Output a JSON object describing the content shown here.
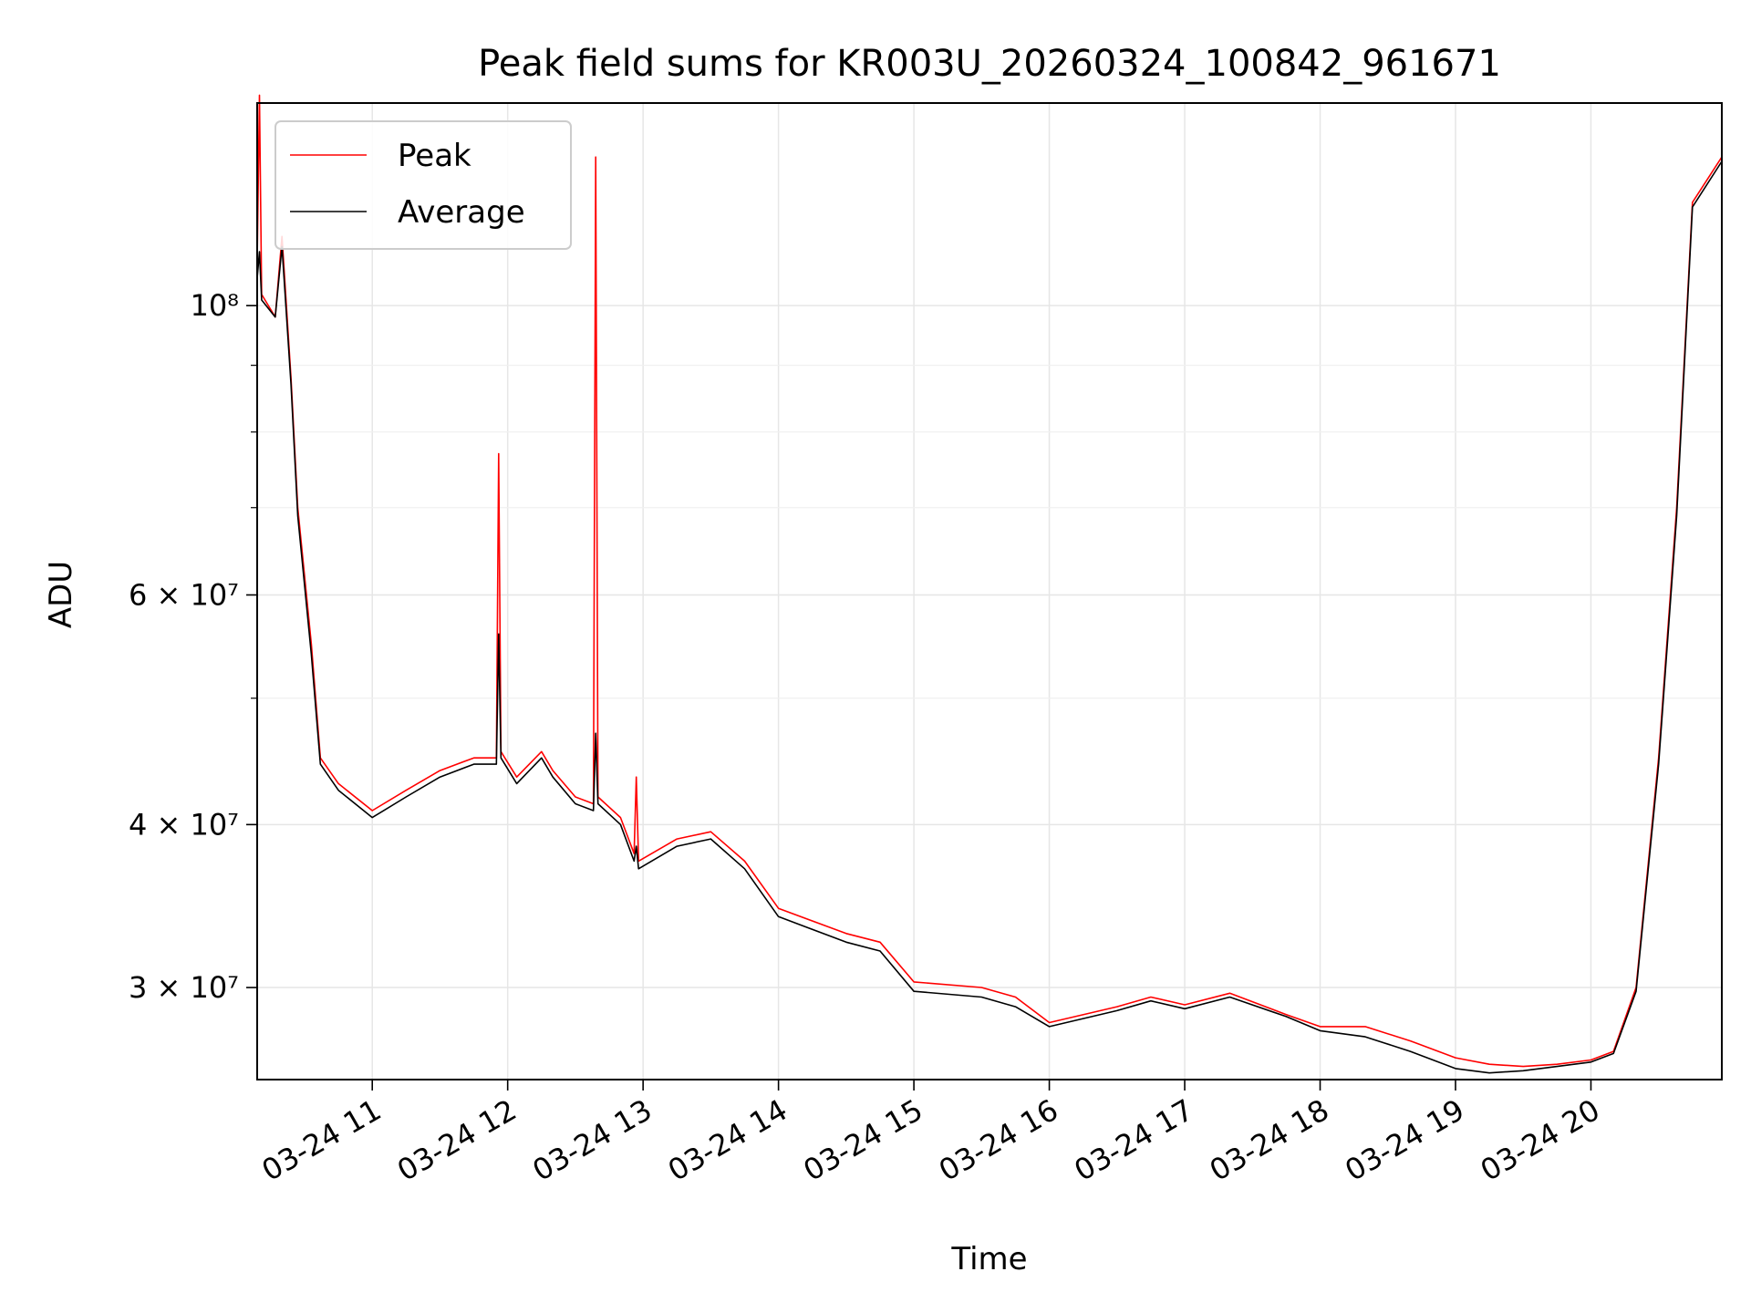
{
  "chart_data": {
    "type": "line",
    "title": "Peak field sums for KR003U_20260324_100842_961671",
    "xlabel": "Time",
    "ylabel": "ADU",
    "yscale": "log",
    "ylim": [
      25500000,
      143000000
    ],
    "xlim": [
      "2026-03-24 10:09",
      "2026-03-24 20:58"
    ],
    "grid": true,
    "legend_position": "top-left",
    "x_ticks": [
      {
        "value": "2026-03-24 11:00",
        "label": "03-24 11"
      },
      {
        "value": "2026-03-24 12:00",
        "label": "03-24 12"
      },
      {
        "value": "2026-03-24 13:00",
        "label": "03-24 13"
      },
      {
        "value": "2026-03-24 14:00",
        "label": "03-24 14"
      },
      {
        "value": "2026-03-24 15:00",
        "label": "03-24 15"
      },
      {
        "value": "2026-03-24 16:00",
        "label": "03-24 16"
      },
      {
        "value": "2026-03-24 17:00",
        "label": "03-24 17"
      },
      {
        "value": "2026-03-24 18:00",
        "label": "03-24 18"
      },
      {
        "value": "2026-03-24 19:00",
        "label": "03-24 19"
      },
      {
        "value": "2026-03-24 20:00",
        "label": "03-24 20"
      }
    ],
    "y_ticks": [
      {
        "value": 30000000,
        "label": "3 × 10⁷"
      },
      {
        "value": 40000000,
        "label": "4 × 10⁷"
      },
      {
        "value": 60000000,
        "label": "6 × 10⁷"
      },
      {
        "value": 100000000,
        "label": "10⁸"
      }
    ],
    "y_minor_ticks": [
      50000000,
      70000000,
      80000000,
      90000000
    ],
    "series": [
      {
        "name": "Peak",
        "color": "#ff0000",
        "points": [
          [
            "2026-03-24 10:09",
            108000000
          ],
          [
            "2026-03-24 10:10",
            145000000
          ],
          [
            "2026-03-24 10:11",
            102000000
          ],
          [
            "2026-03-24 10:17",
            98000000
          ],
          [
            "2026-03-24 10:20",
            113000000
          ],
          [
            "2026-03-24 10:24",
            88000000
          ],
          [
            "2026-03-24 10:27",
            70000000
          ],
          [
            "2026-03-24 10:33",
            55000000
          ],
          [
            "2026-03-24 10:37",
            45000000
          ],
          [
            "2026-03-24 10:45",
            43000000
          ],
          [
            "2026-03-24 11:00",
            41000000
          ],
          [
            "2026-03-24 11:15",
            42500000
          ],
          [
            "2026-03-24 11:30",
            44000000
          ],
          [
            "2026-03-24 11:45",
            45000000
          ],
          [
            "2026-03-24 11:55",
            45000000
          ],
          [
            "2026-03-24 11:56",
            77000000
          ],
          [
            "2026-03-24 11:57",
            45500000
          ],
          [
            "2026-03-24 12:04",
            43500000
          ],
          [
            "2026-03-24 12:15",
            45500000
          ],
          [
            "2026-03-24 12:20",
            44000000
          ],
          [
            "2026-03-24 12:30",
            42000000
          ],
          [
            "2026-03-24 12:38",
            41500000
          ],
          [
            "2026-03-24 12:39",
            130000000
          ],
          [
            "2026-03-24 12:40",
            42000000
          ],
          [
            "2026-03-24 12:50",
            40500000
          ],
          [
            "2026-03-24 12:56",
            38000000
          ],
          [
            "2026-03-24 12:57",
            43500000
          ],
          [
            "2026-03-24 12:58",
            37500000
          ],
          [
            "2026-03-24 13:15",
            39000000
          ],
          [
            "2026-03-24 13:30",
            39500000
          ],
          [
            "2026-03-24 13:45",
            37500000
          ],
          [
            "2026-03-24 14:00",
            34500000
          ],
          [
            "2026-03-24 14:30",
            33000000
          ],
          [
            "2026-03-24 14:45",
            32500000
          ],
          [
            "2026-03-24 15:00",
            30300000
          ],
          [
            "2026-03-24 15:30",
            30000000
          ],
          [
            "2026-03-24 15:45",
            29500000
          ],
          [
            "2026-03-24 16:00",
            28200000
          ],
          [
            "2026-03-24 16:30",
            29000000
          ],
          [
            "2026-03-24 16:45",
            29500000
          ],
          [
            "2026-03-24 17:00",
            29100000
          ],
          [
            "2026-03-24 17:20",
            29700000
          ],
          [
            "2026-03-24 17:45",
            28600000
          ],
          [
            "2026-03-24 18:00",
            28000000
          ],
          [
            "2026-03-24 18:20",
            28000000
          ],
          [
            "2026-03-24 18:40",
            27300000
          ],
          [
            "2026-03-24 19:00",
            26500000
          ],
          [
            "2026-03-24 19:15",
            26200000
          ],
          [
            "2026-03-24 19:30",
            26100000
          ],
          [
            "2026-03-24 19:45",
            26200000
          ],
          [
            "2026-03-24 20:00",
            26400000
          ],
          [
            "2026-03-24 20:10",
            26800000
          ],
          [
            "2026-03-24 20:20",
            30000000
          ],
          [
            "2026-03-24 20:30",
            45000000
          ],
          [
            "2026-03-24 20:38",
            70000000
          ],
          [
            "2026-03-24 20:45",
            120000000
          ],
          [
            "2026-03-24 20:58",
            130000000
          ]
        ]
      },
      {
        "name": "Average",
        "color": "#000000",
        "points": [
          [
            "2026-03-24 10:09",
            105000000
          ],
          [
            "2026-03-24 10:10",
            110000000
          ],
          [
            "2026-03-24 10:11",
            101000000
          ],
          [
            "2026-03-24 10:17",
            98000000
          ],
          [
            "2026-03-24 10:20",
            111000000
          ],
          [
            "2026-03-24 10:24",
            87000000
          ],
          [
            "2026-03-24 10:27",
            69000000
          ],
          [
            "2026-03-24 10:33",
            54000000
          ],
          [
            "2026-03-24 10:37",
            44500000
          ],
          [
            "2026-03-24 10:45",
            42500000
          ],
          [
            "2026-03-24 11:00",
            40500000
          ],
          [
            "2026-03-24 11:15",
            42000000
          ],
          [
            "2026-03-24 11:30",
            43500000
          ],
          [
            "2026-03-24 11:45",
            44500000
          ],
          [
            "2026-03-24 11:55",
            44500000
          ],
          [
            "2026-03-24 11:56",
            56000000
          ],
          [
            "2026-03-24 11:57",
            45000000
          ],
          [
            "2026-03-24 12:04",
            43000000
          ],
          [
            "2026-03-24 12:15",
            45000000
          ],
          [
            "2026-03-24 12:20",
            43500000
          ],
          [
            "2026-03-24 12:30",
            41500000
          ],
          [
            "2026-03-24 12:38",
            41000000
          ],
          [
            "2026-03-24 12:39",
            47000000
          ],
          [
            "2026-03-24 12:40",
            41500000
          ],
          [
            "2026-03-24 12:50",
            40000000
          ],
          [
            "2026-03-24 12:56",
            37500000
          ],
          [
            "2026-03-24 12:57",
            38500000
          ],
          [
            "2026-03-24 12:58",
            37000000
          ],
          [
            "2026-03-24 13:15",
            38500000
          ],
          [
            "2026-03-24 13:30",
            39000000
          ],
          [
            "2026-03-24 13:45",
            37000000
          ],
          [
            "2026-03-24 14:00",
            34000000
          ],
          [
            "2026-03-24 14:30",
            32500000
          ],
          [
            "2026-03-24 14:45",
            32000000
          ],
          [
            "2026-03-24 15:00",
            29800000
          ],
          [
            "2026-03-24 15:30",
            29500000
          ],
          [
            "2026-03-24 15:45",
            29000000
          ],
          [
            "2026-03-24 16:00",
            28000000
          ],
          [
            "2026-03-24 16:30",
            28800000
          ],
          [
            "2026-03-24 16:45",
            29300000
          ],
          [
            "2026-03-24 17:00",
            28900000
          ],
          [
            "2026-03-24 17:20",
            29500000
          ],
          [
            "2026-03-24 17:45",
            28500000
          ],
          [
            "2026-03-24 18:00",
            27800000
          ],
          [
            "2026-03-24 18:20",
            27500000
          ],
          [
            "2026-03-24 18:40",
            26800000
          ],
          [
            "2026-03-24 19:00",
            26000000
          ],
          [
            "2026-03-24 19:15",
            25800000
          ],
          [
            "2026-03-24 19:30",
            25900000
          ],
          [
            "2026-03-24 19:45",
            26100000
          ],
          [
            "2026-03-24 20:00",
            26300000
          ],
          [
            "2026-03-24 20:10",
            26700000
          ],
          [
            "2026-03-24 20:20",
            29800000
          ],
          [
            "2026-03-24 20:30",
            44500000
          ],
          [
            "2026-03-24 20:38",
            69000000
          ],
          [
            "2026-03-24 20:45",
            119000000
          ],
          [
            "2026-03-24 20:58",
            129000000
          ]
        ]
      }
    ]
  }
}
